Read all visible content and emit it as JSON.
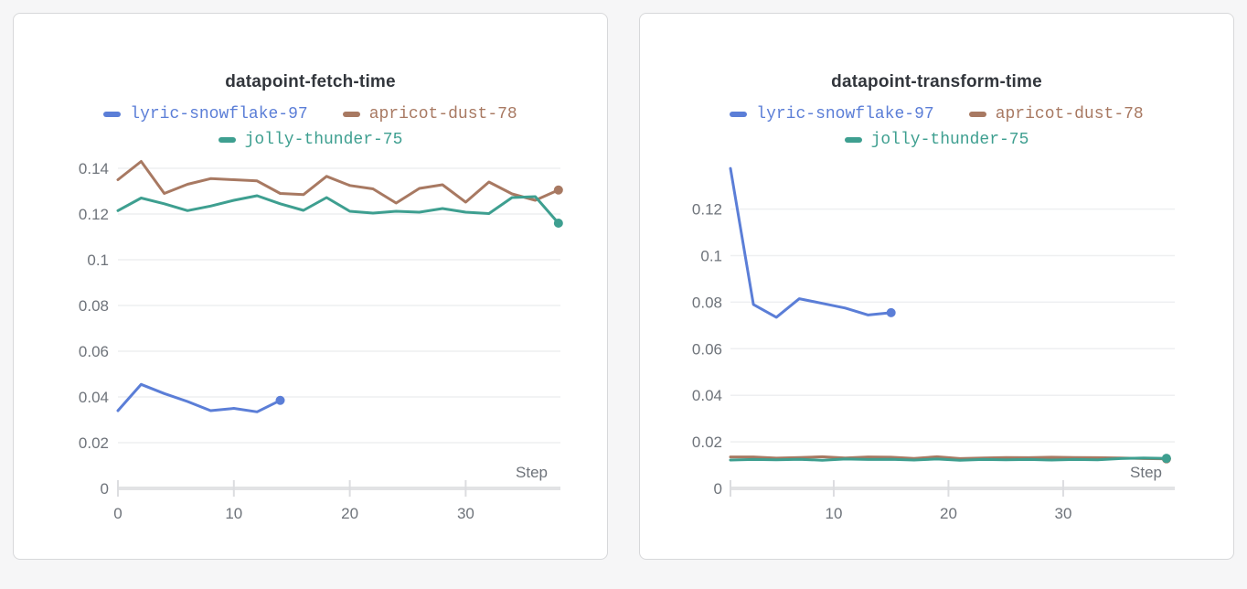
{
  "page": {
    "background": "#f6f6f7",
    "panel_background": "#ffffff",
    "panel_border": "#d7d8da"
  },
  "styles": {
    "title_color": "#32363c",
    "tick_label_color": "#6e737a",
    "gridline_color": "#eeeff1",
    "axis_color": "#e2e3e5",
    "tick_mark_color": "#dcdde0"
  },
  "chart_data": [
    {
      "type": "line",
      "title": "datapoint-fetch-time",
      "xlabel": "Step",
      "legend_position": "top",
      "grid": true,
      "x_ticks": [
        0,
        10,
        20,
        30
      ],
      "y_tick_labels": [
        "0",
        "0.02",
        "0.04",
        "0.06",
        "0.08",
        "0.1",
        "0.12",
        "0.14"
      ],
      "y_tick_values": [
        0,
        0.02,
        0.04,
        0.06,
        0.08,
        0.1,
        0.12,
        0.14
      ],
      "xlim": [
        0,
        38.5
      ],
      "ylim": [
        0,
        0.146
      ],
      "series": [
        {
          "name": "lyric-snowflake-97",
          "color": "#5b7ed7",
          "steps": [
            0,
            2,
            4,
            6,
            8,
            10,
            12,
            14
          ],
          "values": [
            0.034,
            0.0455,
            0.0415,
            0.038,
            0.034,
            0.035,
            0.0335,
            0.0385
          ]
        },
        {
          "name": "apricot-dust-78",
          "color": "#a87962",
          "steps": [
            0,
            2,
            4,
            6,
            8,
            10,
            12,
            14,
            16,
            18,
            20,
            22,
            24,
            26,
            28,
            30,
            32,
            34,
            36,
            38
          ],
          "values": [
            0.135,
            0.143,
            0.129,
            0.133,
            0.1355,
            0.135,
            0.1345,
            0.129,
            0.1285,
            0.1365,
            0.1325,
            0.131,
            0.1248,
            0.1312,
            0.1328,
            0.1252,
            0.134,
            0.1288,
            0.126,
            0.1305
          ]
        },
        {
          "name": "jolly-thunder-75",
          "color": "#3e9f90",
          "steps": [
            0,
            2,
            4,
            6,
            8,
            10,
            12,
            14,
            16,
            18,
            20,
            22,
            24,
            26,
            28,
            30,
            32,
            34,
            36,
            38
          ],
          "values": [
            0.1215,
            0.127,
            0.1245,
            0.1215,
            0.1235,
            0.126,
            0.128,
            0.1245,
            0.1216,
            0.1272,
            0.1212,
            0.1204,
            0.1212,
            0.1208,
            0.1224,
            0.1208,
            0.1202,
            0.1272,
            0.1276,
            0.116
          ]
        }
      ]
    },
    {
      "type": "line",
      "title": "datapoint-transform-time",
      "xlabel": "Step",
      "legend_position": "top",
      "grid": true,
      "x_ticks": [
        10,
        20,
        30
      ],
      "y_tick_labels": [
        "0",
        "0.02",
        "0.04",
        "0.06",
        "0.08",
        "0.1",
        "0.12"
      ],
      "y_tick_values": [
        0,
        0.02,
        0.04,
        0.06,
        0.08,
        0.1,
        0.12
      ],
      "xlim": [
        1,
        39.5
      ],
      "ylim": [
        0,
        0.143
      ],
      "series": [
        {
          "name": "lyric-snowflake-97",
          "color": "#5b7ed7",
          "steps": [
            1,
            3,
            5,
            7,
            9,
            11,
            13,
            15
          ],
          "values": [
            0.1375,
            0.079,
            0.0735,
            0.0815,
            0.0795,
            0.0775,
            0.0745,
            0.0755
          ]
        },
        {
          "name": "apricot-dust-78",
          "color": "#a87962",
          "steps": [
            1,
            3,
            5,
            7,
            9,
            11,
            13,
            15,
            17,
            19,
            21,
            23,
            25,
            27,
            29,
            31,
            33,
            35,
            37,
            39
          ],
          "values": [
            0.0135,
            0.0135,
            0.013,
            0.0133,
            0.0136,
            0.0131,
            0.0135,
            0.0134,
            0.0129,
            0.0136,
            0.0128,
            0.0131,
            0.0133,
            0.0132,
            0.0134,
            0.0133,
            0.0132,
            0.0131,
            0.0128,
            0.0127
          ]
        },
        {
          "name": "jolly-thunder-75",
          "color": "#3e9f90",
          "steps": [
            1,
            3,
            5,
            7,
            9,
            11,
            13,
            15,
            17,
            19,
            21,
            23,
            25,
            27,
            29,
            31,
            33,
            35,
            37,
            39
          ],
          "values": [
            0.0122,
            0.0124,
            0.0123,
            0.0125,
            0.0121,
            0.0126,
            0.0124,
            0.0125,
            0.0122,
            0.0126,
            0.0121,
            0.0124,
            0.0123,
            0.0124,
            0.0122,
            0.0124,
            0.0123,
            0.0128,
            0.0131,
            0.0129
          ]
        }
      ]
    }
  ]
}
